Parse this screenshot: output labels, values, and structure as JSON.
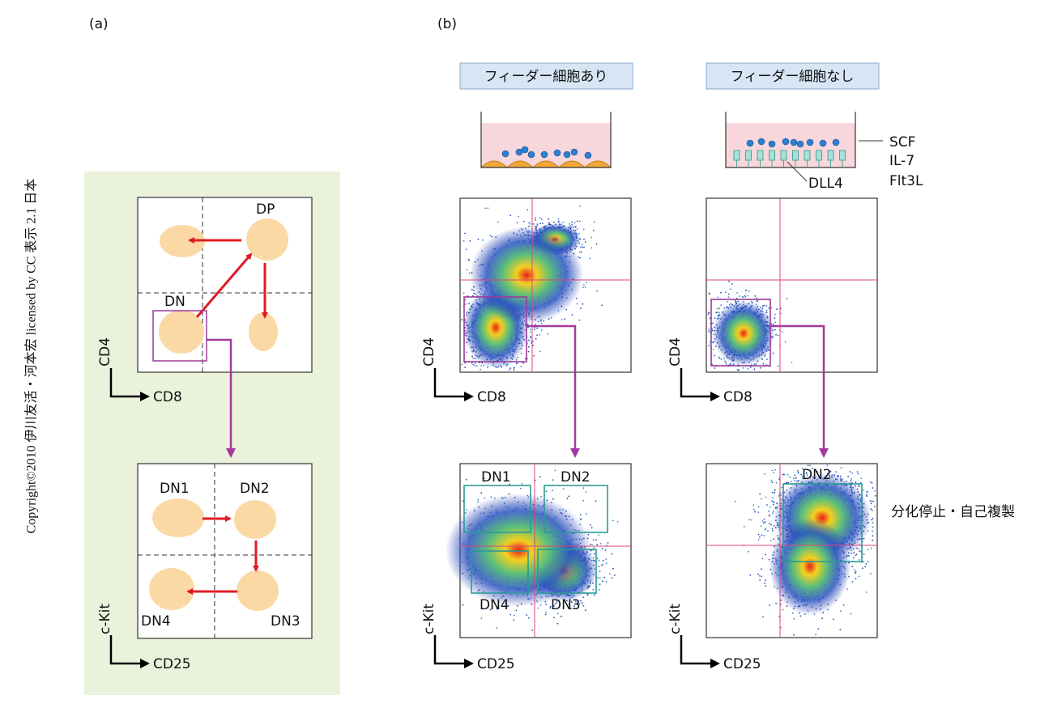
{
  "copyright": "Copyright©2010 伊川友活・河本宏 licensed by CC 表示 2.1 日本",
  "panel_a": {
    "label": "(a)",
    "top_plot": {
      "labels": [
        "DP",
        "DN"
      ],
      "y_axis": "CD4",
      "x_axis": "CD8"
    },
    "bottom_plot": {
      "labels": [
        "DN1",
        "DN2",
        "DN4",
        "DN3"
      ],
      "y_axis": "c-Kit",
      "x_axis": "CD25"
    }
  },
  "panel_b": {
    "label": "(b)",
    "columns": [
      {
        "header": "フィーダー細胞あり",
        "top_plot": {
          "y_axis": "CD4",
          "x_axis": "CD8"
        },
        "bottom_plot": {
          "labels": [
            "DN1",
            "DN2",
            "DN4",
            "DN3"
          ],
          "y_axis": "c-Kit",
          "x_axis": "CD25"
        }
      },
      {
        "header": "フィーダー細胞なし",
        "top_plot": {
          "y_axis": "CD4",
          "x_axis": "CD8"
        },
        "bottom_plot": {
          "labels": [
            "DN2"
          ],
          "y_axis": "c-Kit",
          "x_axis": "CD25"
        }
      }
    ],
    "factors": [
      "SCF",
      "IL-7",
      "Flt3L"
    ],
    "ligand": "DLL4",
    "note": "分化停止・自己複製"
  }
}
